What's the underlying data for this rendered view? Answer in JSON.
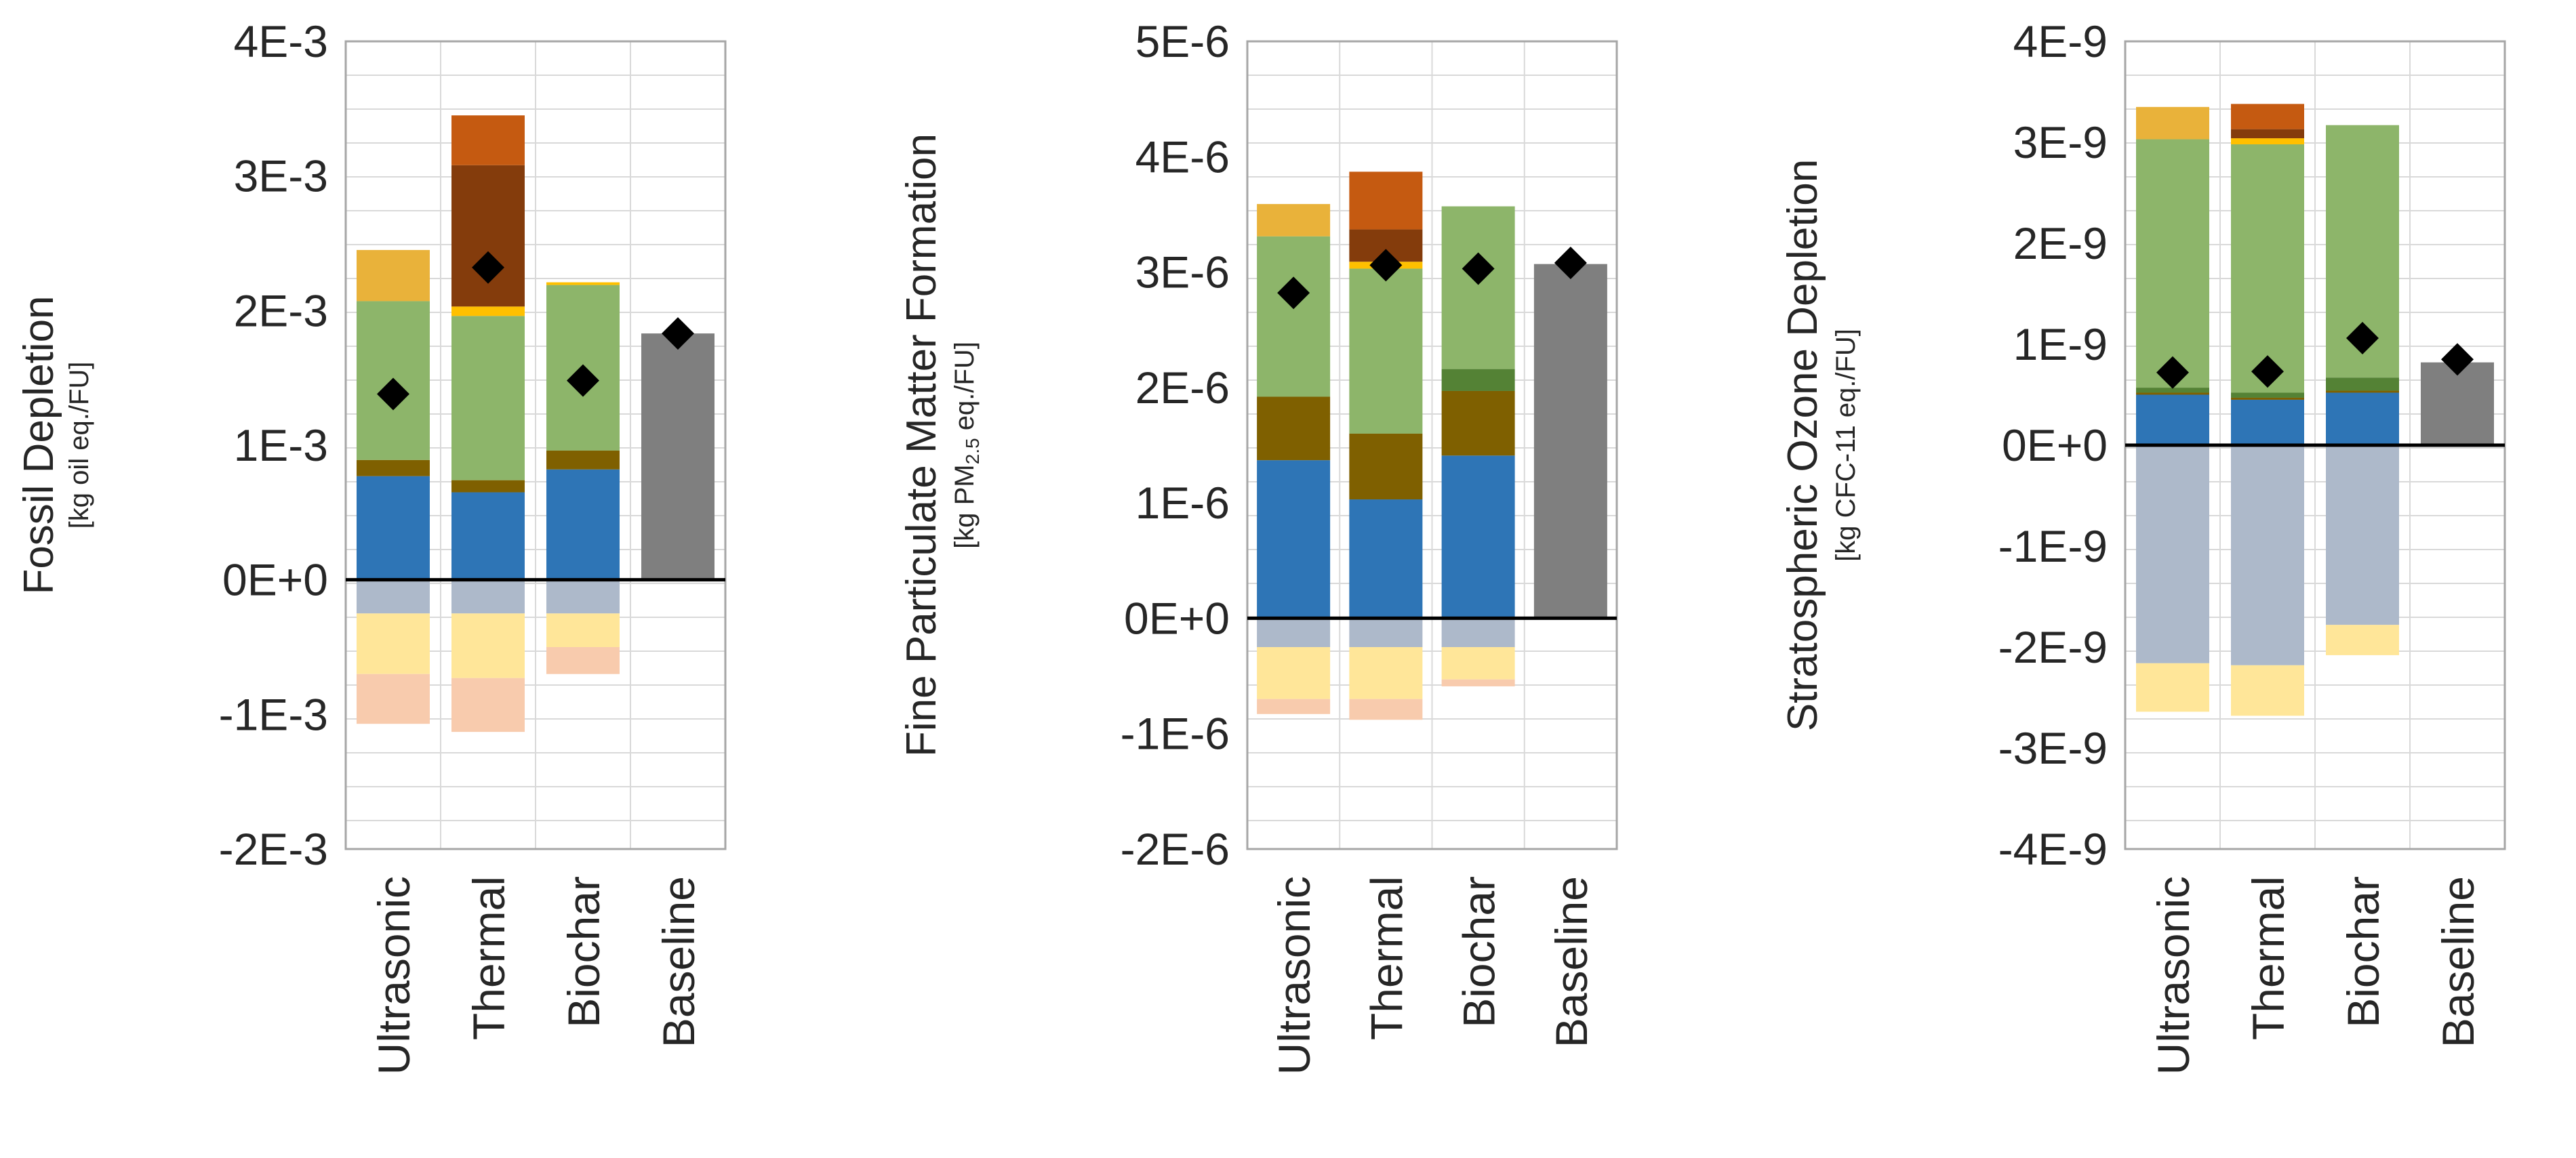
{
  "colors": {
    "grid": "#d9d9d9",
    "frame": "#a6a6a6",
    "axis": "#000000",
    "marker": "#000000",
    "light_orange": "#e9b23a",
    "dark_orange": "#c55a11",
    "brown": "#843c0c",
    "yellow": "#ffc000",
    "green": "#8db56a",
    "dark_green": "#548235",
    "olive": "#7f6000",
    "blue": "#2e75b6",
    "grey": "#7f7f7f",
    "neg_grey": "#adb9ca",
    "neg_yellow": "#ffe699",
    "neg_peach": "#f8cbad"
  },
  "chart_data": [
    {
      "type": "bar",
      "stacked": true,
      "ylabel": "Fossil Depletion",
      "ylabel_unit": "[kg oil eq./FU]",
      "ylim": [
        -0.002,
        0.004
      ],
      "ytick_values": [
        -0.002,
        -0.001,
        0,
        0.001,
        0.002,
        0.003,
        0.004
      ],
      "ytick_labels": [
        "-2E-3",
        "-1E-3",
        "0E+0",
        "1E-3",
        "2E-3",
        "3E-3",
        "4E-3"
      ],
      "categories": [
        "Ultrasonic",
        "Thermal",
        "Biochar",
        "Baseline"
      ],
      "series": [
        {
          "name": "blue",
          "color": "#2e75b6",
          "values": [
            0.00077,
            0.00065,
            0.00082,
            0
          ]
        },
        {
          "name": "olive",
          "color": "#7f6000",
          "values": [
            0.00012,
            9e-05,
            0.00014,
            0
          ]
        },
        {
          "name": "green",
          "color": "#8db56a",
          "values": [
            0.00118,
            0.00122,
            0.00123,
            0
          ]
        },
        {
          "name": "yellow",
          "color": "#ffc000",
          "values": [
            0,
            7e-05,
            2e-05,
            0
          ]
        },
        {
          "name": "brown",
          "color": "#843c0c",
          "values": [
            0,
            0.00105,
            0,
            0
          ]
        },
        {
          "name": "light-orange",
          "color": "#e9b23a",
          "values": [
            0.00038,
            0,
            0,
            0
          ]
        },
        {
          "name": "dark-orange",
          "color": "#c55a11",
          "values": [
            0,
            0.00037,
            0,
            0
          ]
        },
        {
          "name": "grey",
          "color": "#7f7f7f",
          "values": [
            0,
            0,
            0,
            0.00183
          ]
        },
        {
          "name": "neg-grey",
          "color": "#adb9ca",
          "values": [
            -0.00025,
            -0.00025,
            -0.00025,
            0
          ]
        },
        {
          "name": "neg-yellow",
          "color": "#ffe699",
          "values": [
            -0.00045,
            -0.00048,
            -0.00025,
            0
          ]
        },
        {
          "name": "neg-peach",
          "color": "#f8cbad",
          "values": [
            -0.00037,
            -0.0004,
            -0.0002,
            0
          ]
        }
      ],
      "net_markers": [
        0.00138,
        0.00232,
        0.00148,
        0.00183
      ]
    },
    {
      "type": "bar",
      "stacked": true,
      "ylabel": "Fine Particulate Matter Formation",
      "ylabel_unit_prefix": "[kg PM",
      "ylabel_unit_sub": "2.5",
      "ylabel_unit_suffix": " eq./FU]",
      "ylim": [
        -2e-06,
        5e-06
      ],
      "ytick_values": [
        -2e-06,
        -1e-06,
        0,
        1e-06,
        2e-06,
        3e-06,
        4e-06,
        5e-06
      ],
      "ytick_labels": [
        "-2E-6",
        "-1E-6",
        "0E+0",
        "1E-6",
        "2E-6",
        "3E-6",
        "4E-6",
        "5E-6"
      ],
      "categories": [
        "Ultrasonic",
        "Thermal",
        "Biochar",
        "Baseline"
      ],
      "series": [
        {
          "name": "blue",
          "color": "#2e75b6",
          "values": [
            1.37e-06,
            1.03e-06,
            1.41e-06,
            0
          ]
        },
        {
          "name": "olive",
          "color": "#7f6000",
          "values": [
            5.5e-07,
            5.7e-07,
            5.6e-07,
            0
          ]
        },
        {
          "name": "dark-green",
          "color": "#548235",
          "values": [
            0,
            0,
            1.9e-07,
            0
          ]
        },
        {
          "name": "green",
          "color": "#8db56a",
          "values": [
            1.39e-06,
            1.43e-06,
            1.41e-06,
            0
          ]
        },
        {
          "name": "yellow",
          "color": "#ffc000",
          "values": [
            0,
            6e-08,
            0,
            0
          ]
        },
        {
          "name": "brown",
          "color": "#843c0c",
          "values": [
            0,
            2.8e-07,
            0,
            0
          ]
        },
        {
          "name": "light-orange",
          "color": "#e9b23a",
          "values": [
            2.8e-07,
            0,
            0,
            0
          ]
        },
        {
          "name": "dark-orange",
          "color": "#c55a11",
          "values": [
            0,
            5e-07,
            0,
            0
          ]
        },
        {
          "name": "grey",
          "color": "#7f7f7f",
          "values": [
            0,
            0,
            0,
            3.07e-06
          ]
        },
        {
          "name": "neg-grey",
          "color": "#adb9ca",
          "values": [
            -2.5e-07,
            -2.5e-07,
            -2.5e-07,
            0
          ]
        },
        {
          "name": "neg-yellow",
          "color": "#ffe699",
          "values": [
            -4.5e-07,
            -4.5e-07,
            -2.8e-07,
            0
          ]
        },
        {
          "name": "neg-peach",
          "color": "#f8cbad",
          "values": [
            -1.3e-07,
            -1.8e-07,
            -6e-08,
            0
          ]
        }
      ],
      "net_markers": [
        2.82e-06,
        3.06e-06,
        3.03e-06,
        3.08e-06
      ]
    },
    {
      "type": "bar",
      "stacked": true,
      "ylabel": "Stratospheric Ozone Depletion",
      "ylabel_unit": "[kg CFC-11 eq./FU]",
      "ylim": [
        -4e-09,
        4e-09
      ],
      "ytick_values": [
        -4e-09,
        -3e-09,
        -2e-09,
        -1e-09,
        0,
        1e-09,
        2e-09,
        3e-09,
        4e-09
      ],
      "ytick_labels": [
        "-4E-9",
        "-3E-9",
        "-2E-9",
        "-1E-9",
        "0E+0",
        "1E-9",
        "2E-9",
        "3E-9",
        "4E-9"
      ],
      "categories": [
        "Ultrasonic",
        "Thermal",
        "Biochar",
        "Baseline"
      ],
      "series": [
        {
          "name": "blue",
          "color": "#2e75b6",
          "values": [
            5e-10,
            4.5e-10,
            5.2e-10,
            0
          ]
        },
        {
          "name": "olive",
          "color": "#7f6000",
          "values": [
            2e-11,
            2e-11,
            2e-11,
            0
          ]
        },
        {
          "name": "dark-green",
          "color": "#548235",
          "values": [
            5e-11,
            5e-11,
            1.3e-10,
            0
          ]
        },
        {
          "name": "green",
          "color": "#8db56a",
          "values": [
            2.46e-09,
            2.46e-09,
            2.5e-09,
            0
          ]
        },
        {
          "name": "yellow",
          "color": "#ffc000",
          "values": [
            0,
            6e-11,
            0,
            0
          ]
        },
        {
          "name": "brown",
          "color": "#843c0c",
          "values": [
            0,
            9e-11,
            0,
            0
          ]
        },
        {
          "name": "light-orange",
          "color": "#e9b23a",
          "values": [
            3.2e-10,
            0,
            0,
            0
          ]
        },
        {
          "name": "dark-orange",
          "color": "#c55a11",
          "values": [
            0,
            2.5e-10,
            0,
            0
          ]
        },
        {
          "name": "grey",
          "color": "#7f7f7f",
          "values": [
            0,
            0,
            0,
            8.2e-10
          ]
        },
        {
          "name": "neg-grey",
          "color": "#adb9ca",
          "values": [
            -2.16e-09,
            -2.18e-09,
            -1.78e-09,
            0
          ]
        },
        {
          "name": "neg-yellow",
          "color": "#ffe699",
          "values": [
            -4.8e-10,
            -5e-10,
            -3e-10,
            0
          ]
        },
        {
          "name": "neg-peach",
          "color": "#f8cbad",
          "values": [
            0,
            0,
            0,
            0
          ]
        }
      ],
      "net_markers": [
        7.2e-10,
        7.3e-10,
        1.06e-09,
        8.5e-10
      ]
    }
  ]
}
